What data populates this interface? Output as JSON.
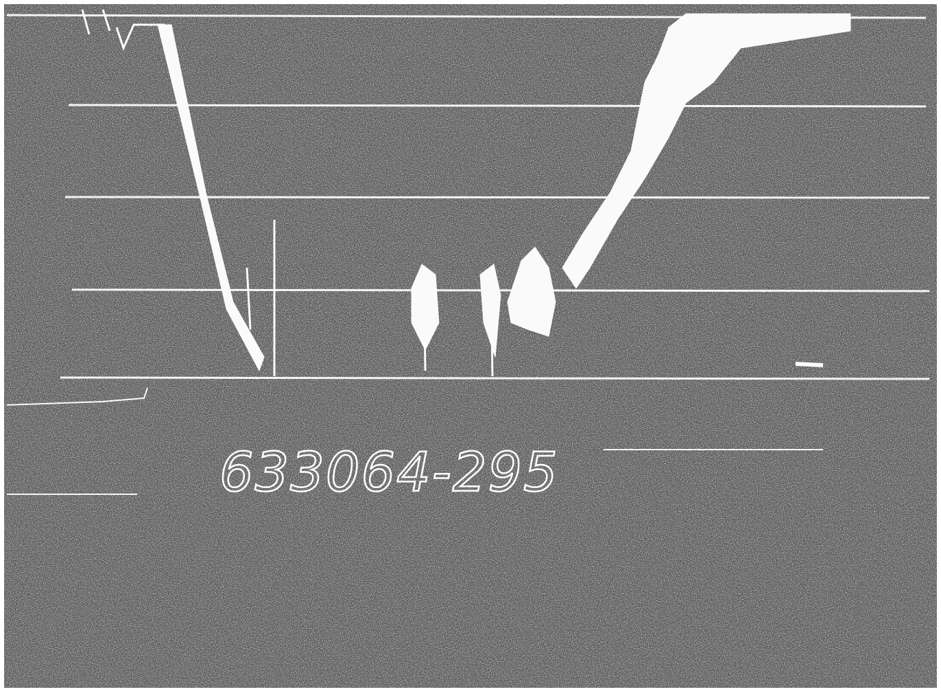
{
  "label": "633064-295"
}
